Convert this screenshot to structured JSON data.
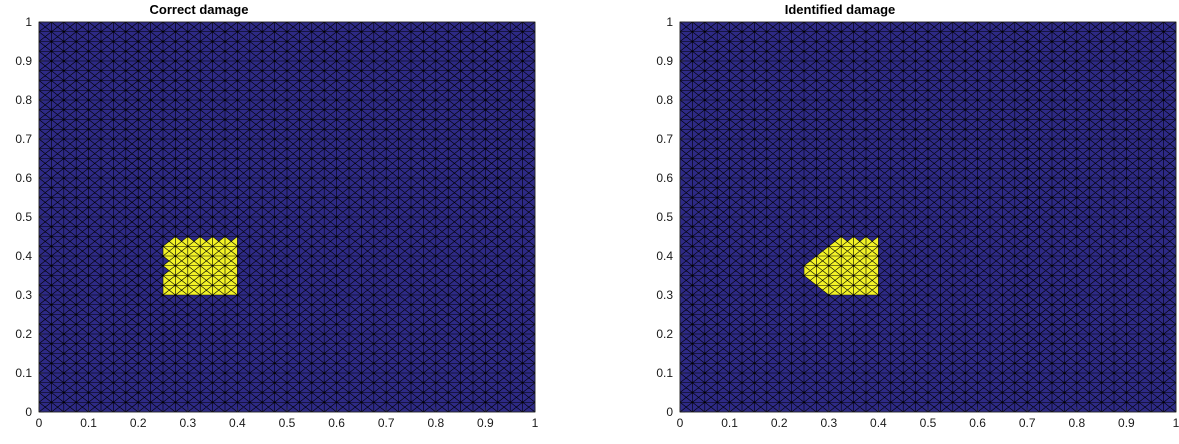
{
  "figure": {
    "panels": [
      "Correct damage",
      "Identified damage"
    ]
  },
  "colors": {
    "undamaged": "#2e2a86",
    "damaged": "#f2f227",
    "mesh_edges": "#000000",
    "axes": "#262626"
  },
  "chart_data": [
    {
      "type": "heatmap",
      "title": "Correct damage",
      "xlabel": "",
      "ylabel": "",
      "xlim": [
        0,
        1
      ],
      "ylim": [
        0,
        1
      ],
      "x_ticks": [
        0,
        0.1,
        0.2,
        0.3,
        0.4,
        0.5,
        0.6,
        0.7,
        0.8,
        0.9,
        1
      ],
      "y_ticks": [
        0,
        0.1,
        0.2,
        0.3,
        0.4,
        0.5,
        0.6,
        0.7,
        0.8,
        0.9,
        1
      ],
      "mesh": "triangular finite-element mesh on unit square, 40 x 40 cells, union-jack split",
      "values": [
        "undamaged",
        "damaged"
      ],
      "damaged_region": {
        "x": [
          0.25,
          0.4
        ],
        "y": [
          0.3,
          0.44
        ],
        "left_edge": "jagged"
      }
    },
    {
      "type": "heatmap",
      "title": "Identified damage",
      "xlabel": "",
      "ylabel": "",
      "xlim": [
        0,
        1
      ],
      "ylim": [
        0,
        1
      ],
      "x_ticks": [
        0,
        0.1,
        0.2,
        0.3,
        0.4,
        0.5,
        0.6,
        0.7,
        0.8,
        0.9,
        1
      ],
      "y_ticks": [
        0,
        0.1,
        0.2,
        0.3,
        0.4,
        0.5,
        0.6,
        0.7,
        0.8,
        0.9,
        1
      ],
      "mesh": "triangular finite-element mesh on unit square, 40 x 40 cells, union-jack split",
      "values": [
        "undamaged",
        "damaged"
      ],
      "damaged_region": {
        "x": [
          0.25,
          0.4
        ],
        "y": [
          0.3,
          0.44
        ],
        "left_edge": "rounded"
      }
    }
  ]
}
